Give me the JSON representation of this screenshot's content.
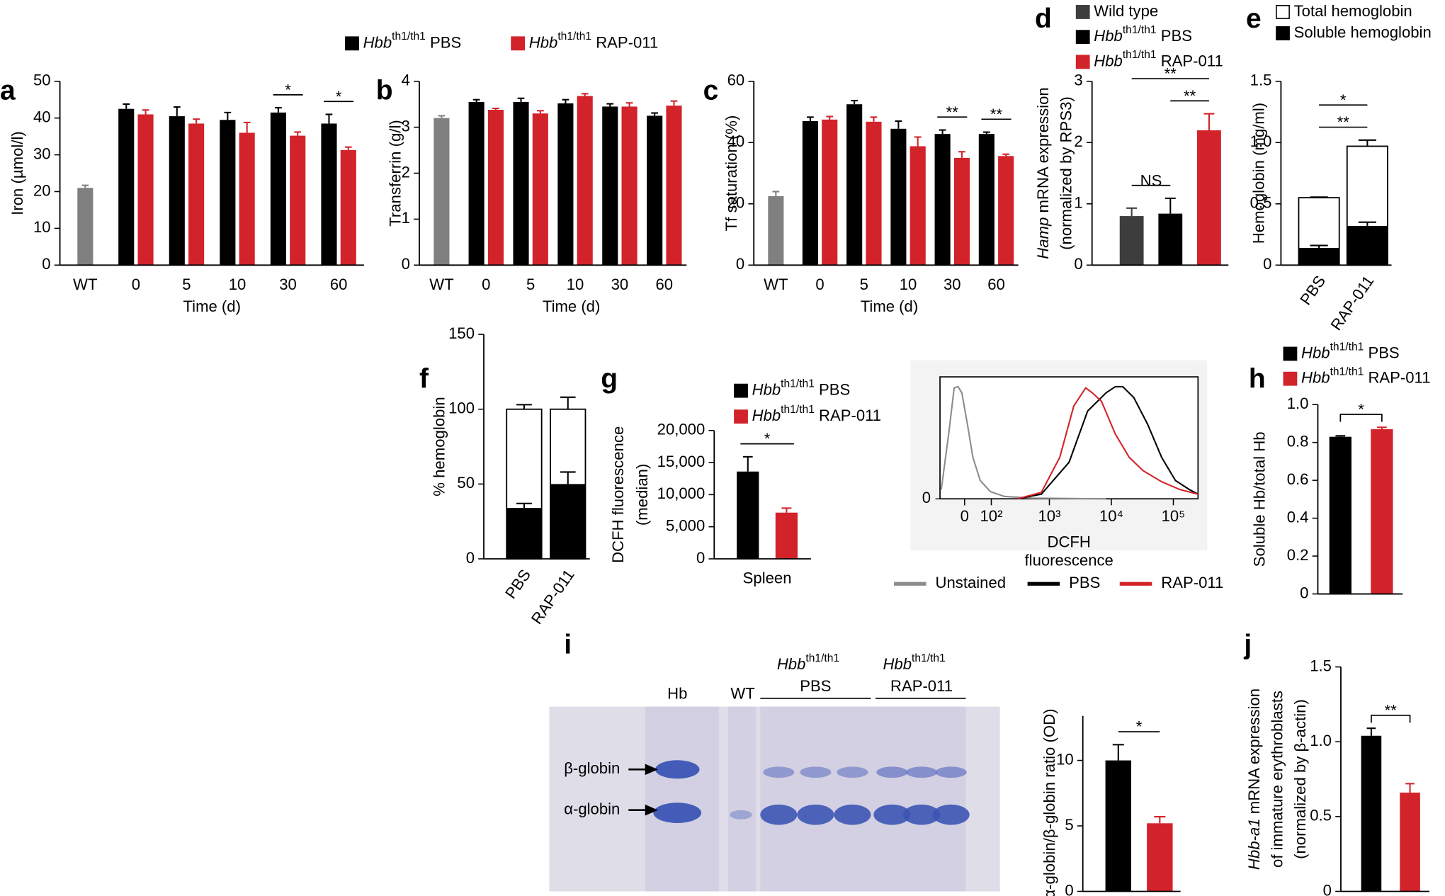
{
  "chart_data": [
    {
      "panel": "a",
      "type": "bar",
      "ylabel": "Iron (µmol/l)",
      "xlabel": "Time (d)",
      "categories": [
        "WT",
        "0",
        "5",
        "10",
        "30",
        "60"
      ],
      "series": [
        {
          "color": "#808080",
          "values": [
            21,
            null,
            null,
            null,
            null,
            null
          ],
          "errors": [
            0.7,
            null,
            null,
            null,
            null,
            null
          ]
        },
        {
          "name": [
            {
              "text": "Hbb",
              "italic": true
            },
            {
              "text": "th1/th1",
              "sup": true
            },
            {
              "text": " PBS"
            }
          ],
          "color": "#000000",
          "values": [
            null,
            42.5,
            40.5,
            39.5,
            41.5,
            38.5
          ],
          "errors": [
            null,
            1.3,
            2.5,
            2,
            1.3,
            2.5
          ]
        },
        {
          "name": [
            {
              "text": "Hbb",
              "italic": true
            },
            {
              "text": "th1/th1",
              "sup": true
            },
            {
              "text": " RAP-011"
            }
          ],
          "color": "#d2232a",
          "values": [
            null,
            41,
            38.5,
            36,
            35.2,
            31.3
          ],
          "errors": [
            null,
            1.2,
            1.2,
            2.8,
            1,
            0.8
          ]
        }
      ],
      "ylim": [
        0,
        50
      ],
      "yticks": [
        0,
        10,
        20,
        30,
        40,
        50
      ],
      "legend": "top",
      "annotations": [
        {
          "text": "*",
          "from": 4,
          "to": 4
        },
        {
          "text": "*",
          "from": 5,
          "to": 5
        }
      ]
    },
    {
      "panel": "b",
      "type": "bar",
      "ylabel": "Transferrin (g/l)",
      "xlabel": "Time (d)",
      "categories": [
        "WT",
        "0",
        "5",
        "10",
        "30",
        "60"
      ],
      "series": [
        {
          "color": "#808080",
          "values": [
            3.2,
            null,
            null,
            null,
            null,
            null
          ],
          "errors": [
            0.05,
            null,
            null,
            null,
            null,
            null
          ]
        },
        {
          "color": "#000000",
          "values": [
            null,
            3.55,
            3.55,
            3.52,
            3.45,
            3.25
          ],
          "errors": [
            null,
            0.05,
            0.08,
            0.08,
            0.06,
            0.06
          ]
        },
        {
          "color": "#d2232a",
          "values": [
            null,
            3.38,
            3.3,
            3.68,
            3.45,
            3.47
          ],
          "errors": [
            null,
            0.03,
            0.06,
            0.05,
            0.08,
            0.1
          ]
        }
      ],
      "ylim": [
        0,
        4
      ],
      "yticks": [
        0,
        1,
        2,
        3,
        4
      ]
    },
    {
      "panel": "c",
      "type": "bar",
      "ylabel": "Tf saturation (%)",
      "xlabel": "Time (d)",
      "categories": [
        "WT",
        "0",
        "5",
        "10",
        "30",
        "60"
      ],
      "series": [
        {
          "color": "#808080",
          "values": [
            22.5,
            null,
            null,
            null,
            null,
            null
          ],
          "errors": [
            1.5,
            null,
            null,
            null,
            null,
            null
          ]
        },
        {
          "color": "#000000",
          "values": [
            null,
            47,
            52.5,
            44.5,
            42.8,
            42.8
          ],
          "errors": [
            null,
            1.3,
            1.2,
            2.5,
            1.3,
            0.6
          ]
        },
        {
          "color": "#d2232a",
          "values": [
            null,
            47.5,
            46.8,
            38.8,
            35,
            35.6
          ],
          "errors": [
            null,
            1,
            1.5,
            3,
            2,
            0.6
          ]
        }
      ],
      "ylim": [
        0,
        60
      ],
      "yticks": [
        0,
        20,
        40,
        60
      ],
      "annotations": [
        {
          "text": "**",
          "from": 4,
          "to": 4
        },
        {
          "text": "**",
          "from": 5,
          "to": 5
        }
      ]
    },
    {
      "panel": "d",
      "type": "bar",
      "ylabel": [
        [
          {
            "text": "Hamp",
            "italic": true
          },
          {
            "text": " mRNA expression"
          }
        ],
        "(normalized by RPS3)"
      ],
      "categories": [
        null,
        null,
        null
      ],
      "series": [
        {
          "name": "Wild type",
          "color": "#3d3d3d",
          "values": [
            0.8,
            null,
            null
          ],
          "errors": [
            0.13,
            null,
            null
          ]
        },
        {
          "name": [
            {
              "text": "Hbb",
              "italic": true
            },
            {
              "text": "th1/th1",
              "sup": true
            },
            {
              "text": " PBS"
            }
          ],
          "color": "#000000",
          "values": [
            null,
            0.84,
            null
          ],
          "errors": [
            null,
            0.25,
            null
          ]
        },
        {
          "name": [
            {
              "text": "Hbb",
              "italic": true
            },
            {
              "text": "th1/th1",
              "sup": true
            },
            {
              "text": " RAP-011"
            }
          ],
          "color": "#d2232a",
          "values": [
            null,
            null,
            2.2
          ],
          "errors": [
            null,
            null,
            0.27
          ]
        }
      ],
      "ylim": [
        0,
        3
      ],
      "yticks": [
        0,
        1,
        2,
        3
      ],
      "legend": "top-left",
      "annotations": [
        {
          "text": "NS",
          "from": 0,
          "to": 1
        },
        {
          "text": "**",
          "from": 0,
          "to": 2
        },
        {
          "text": "**",
          "from": 1,
          "to": 2
        }
      ]
    },
    {
      "panel": "e",
      "type": "bar",
      "overlay": true,
      "ylabel": "Hemoglobin (mg/ml)",
      "categories": [
        "PBS",
        "RAP-011"
      ],
      "series": [
        {
          "name": "Total hemoglobin",
          "color": "#ffffff",
          "values": [
            0.55,
            0.97
          ],
          "errors": [
            0.005,
            0.05
          ]
        },
        {
          "name": "Soluble hemoglobin",
          "color": "#000000",
          "values": [
            0.14,
            0.32
          ],
          "errors": [
            0.02,
            0.03
          ]
        }
      ],
      "ylim": [
        0,
        1.5
      ],
      "yticks": [
        0,
        0.5,
        {
          "value": 1,
          "label": "1.0"
        },
        1.5
      ],
      "legend": "top-left",
      "annotations": [
        {
          "text": "**",
          "from": 0,
          "to": 1
        },
        {
          "text": "*",
          "from": 0,
          "to": 1
        }
      ]
    },
    {
      "panel": "f",
      "type": "bar",
      "overlay": true,
      "ylabel": "% hemoglobin",
      "categories": [
        "PBS",
        "RAP-011"
      ],
      "series": [
        {
          "color": "#ffffff",
          "values": [
            100,
            100
          ],
          "errors": [
            3,
            8
          ]
        },
        {
          "color": "#000000",
          "values": [
            34,
            50
          ],
          "errors": [
            3,
            8
          ]
        }
      ],
      "ylim": [
        0,
        150
      ],
      "yticks": [
        0,
        50,
        100,
        150
      ]
    },
    {
      "panel": "g",
      "type": "bar",
      "ylabel": [
        "DCFH fluorescence",
        "(median)"
      ],
      "categories": [
        "Spleen"
      ],
      "series": [
        {
          "name": [
            {
              "text": "Hbb",
              "italic": true
            },
            {
              "text": "th1/th1",
              "sup": true
            },
            {
              "text": " PBS"
            }
          ],
          "color": "#000000",
          "values": [
            13600
          ],
          "errors": [
            2300
          ]
        },
        {
          "name": [
            {
              "text": "Hbb",
              "italic": true
            },
            {
              "text": "th1/th1",
              "sup": true
            },
            {
              "text": " RAP-011"
            }
          ],
          "color": "#d2232a",
          "values": [
            7200
          ],
          "errors": [
            700
          ]
        }
      ],
      "ylim": [
        0,
        20000
      ],
      "yticks": [
        0,
        {
          "value": 5000,
          "label": "5,000"
        },
        {
          "value": 10000,
          "label": "10,000"
        },
        {
          "value": 15000,
          "label": "15,000"
        },
        {
          "value": 20000,
          "label": "20,000"
        }
      ],
      "legend": "top-left",
      "annotations": [
        {
          "text": "*",
          "from": 0,
          "to": 0
        }
      ]
    },
    {
      "type": "line",
      "xscale": "biexponential",
      "xlabel": [
        "DCFH",
        "fluorescence"
      ],
      "series": [
        {
          "name": "Unstained",
          "color": "#8c8c8c",
          "x": [
            -84,
            -54,
            -34,
            -21,
            -9,
            9,
            27,
            53,
            95,
            178,
            522,
            8170
          ],
          "values": [
            7.6,
            53,
            91,
            92,
            87,
            61,
            34,
            15,
            6,
            2,
            0.5,
            0
          ]
        },
        {
          "name": "PBS",
          "color": "#000000",
          "x": [
            300,
            741,
            2079,
            4137,
            8235,
            11600,
            15265,
            23000,
            38600,
            64600,
            108000,
            181000,
            250000
          ],
          "values": [
            0,
            3.8,
            30,
            72,
            87,
            92,
            92,
            83,
            61,
            34,
            15,
            7.6,
            3.8
          ]
        },
        {
          "name": "RAP-011",
          "color": "#d2232a",
          "x": [
            300,
            741,
            1473,
            2468,
            3861,
            4919,
            6926,
            11600,
            19400,
            32500,
            64600,
            128000,
            250000
          ],
          "values": [
            0,
            5.3,
            34,
            76,
            91,
            87,
            80,
            53,
            34,
            23,
            14,
            7.6,
            3.8
          ]
        }
      ],
      "xlim": [
        -90,
        250000
      ],
      "xticks": [
        0,
        {
          "value": 100,
          "label": "10²"
        },
        {
          "value": 1000,
          "label": "10³"
        },
        {
          "value": 10000,
          "label": "10⁴"
        },
        {
          "value": 100000,
          "label": "10⁵"
        }
      ],
      "ylim": [
        0,
        100
      ],
      "yticks": [
        0
      ],
      "legend": "bottom"
    },
    {
      "panel": "h",
      "type": "bar",
      "ylabel": "Soluble Hb/total Hb",
      "categories": [
        null,
        null
      ],
      "series": [
        {
          "name": [
            {
              "text": "Hbb",
              "italic": true
            },
            {
              "text": "th1/th1",
              "sup": true
            },
            {
              "text": " PBS"
            }
          ],
          "color": "#000000",
          "values": [
            0.83,
            null
          ],
          "errors": [
            0.005,
            null
          ]
        },
        {
          "name": [
            {
              "text": "Hbb",
              "italic": true
            },
            {
              "text": "th1/th1",
              "sup": true
            },
            {
              "text": " RAP-011"
            }
          ],
          "color": "#d2232a",
          "values": [
            null,
            0.87
          ],
          "errors": [
            null,
            0.01
          ]
        }
      ],
      "ylim": [
        0,
        1
      ],
      "yticks": [
        0,
        0.2,
        0.4,
        0.6,
        0.8,
        {
          "value": 1,
          "label": "1.0"
        }
      ],
      "legend": "top-left",
      "annotations": [
        {
          "text": "*",
          "from": 0,
          "to": 1
        }
      ]
    },
    {
      "panel": "i",
      "type": "bar",
      "ylabel": "α-globin/β-globin ratio (OD)",
      "categories": [
        null,
        null
      ],
      "series": [
        {
          "color": "#000000",
          "values": [
            10,
            null
          ],
          "errors": [
            1.2,
            null
          ]
        },
        {
          "color": "#d2232a",
          "values": [
            null,
            5.2
          ],
          "errors": [
            null,
            0.5
          ]
        }
      ],
      "ylim": [
        0,
        13.4
      ],
      "yticks": [
        0,
        5,
        10
      ],
      "annotations": [
        {
          "text": "*",
          "from": 0,
          "to": 1
        }
      ]
    },
    {
      "panel": "j",
      "type": "bar",
      "ylabel": [
        [
          {
            "text": "Hbb-a1",
            "italic": true
          },
          {
            "text": " mRNA expression"
          }
        ],
        "of immature erythroblasts",
        "(normalized by β-actin)"
      ],
      "categories": [
        null,
        null
      ],
      "series": [
        {
          "color": "#000000",
          "values": [
            1.04,
            null
          ],
          "errors": [
            0.05,
            null
          ]
        },
        {
          "color": "#d2232a",
          "values": [
            null,
            0.66
          ],
          "errors": [
            null,
            0.06
          ]
        }
      ],
      "ylim": [
        0,
        1.5
      ],
      "yticks": [
        0,
        0.5,
        {
          "value": 1,
          "label": "1.0"
        },
        1.5
      ],
      "annotations": [
        {
          "text": "**",
          "from": 0,
          "to": 1
        }
      ]
    }
  ],
  "gel": {
    "hb": "Hb",
    "wt": "WT",
    "groups": [
      {
        "genotype": [
          {
            "text": "Hbb",
            "italic": true
          },
          {
            "text": "th1/th1",
            "sup": true
          }
        ],
        "treatment": "PBS"
      },
      {
        "genotype": [
          {
            "text": "Hbb",
            "italic": true
          },
          {
            "text": "th1/th1",
            "sup": true
          }
        ],
        "treatment": "RAP-011"
      }
    ],
    "bands": [
      "β-globin",
      "α-globin"
    ]
  }
}
